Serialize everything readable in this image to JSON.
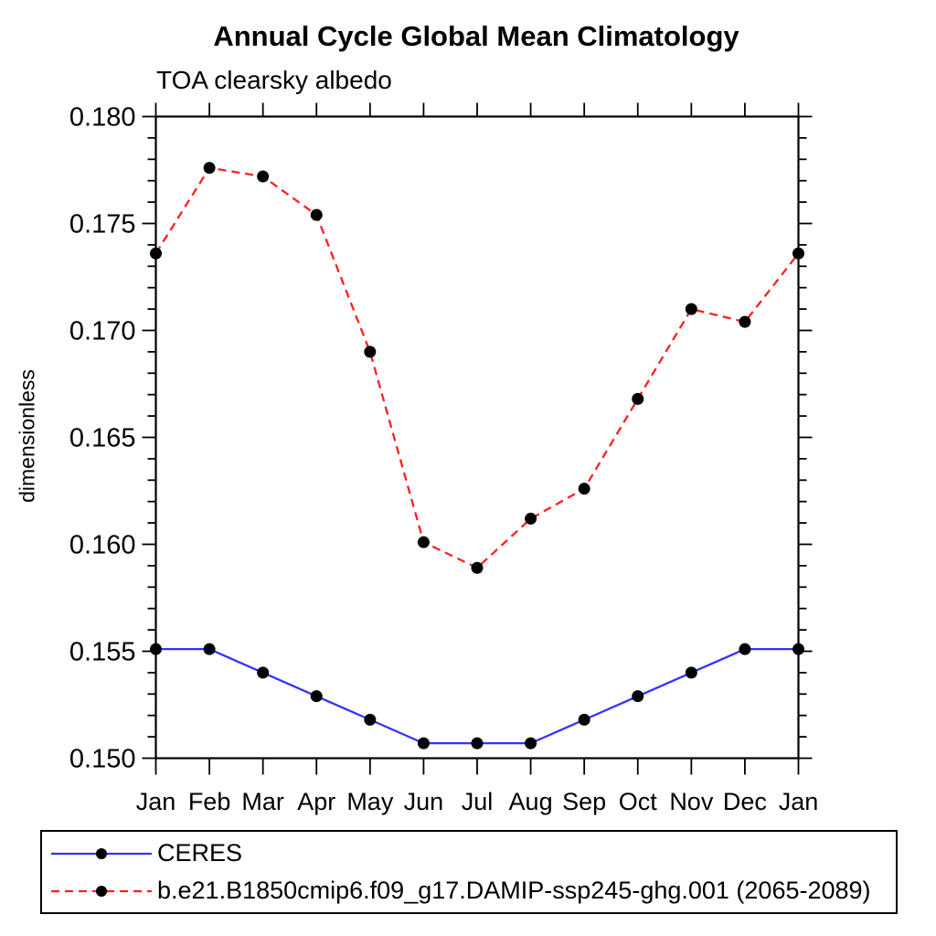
{
  "header": {
    "title": "Annual Cycle Global Mean Climatology",
    "subtitle": "TOA clearsky albedo"
  },
  "chart_data": {
    "type": "line",
    "title": "Annual Cycle Global Mean Climatology",
    "subtitle": "TOA clearsky albedo",
    "xlabel": "",
    "ylabel": "dimensionless",
    "categories": [
      "Jan",
      "Feb",
      "Mar",
      "Apr",
      "May",
      "Jun",
      "Jul",
      "Aug",
      "Sep",
      "Oct",
      "Nov",
      "Dec",
      "Jan"
    ],
    "ylim": [
      0.15,
      0.18
    ],
    "ytick_major_interval": 0.005,
    "ytick_minor_interval": 0.001,
    "ytick_labels": [
      "0.150",
      "0.155",
      "0.160",
      "0.165",
      "0.170",
      "0.175",
      "0.180"
    ],
    "grid": false,
    "legend_position": "bottom",
    "axis_color": "#000000",
    "series": [
      {
        "name": "CERES",
        "color": "#3333ff",
        "line_style": "solid",
        "marker": "filled-circle",
        "marker_color": "#000000",
        "values": [
          0.1551,
          0.1551,
          0.154,
          0.1529,
          0.1518,
          0.1507,
          0.1507,
          0.1507,
          0.1518,
          0.1529,
          0.154,
          0.1551,
          0.1551
        ]
      },
      {
        "name": "b.e21.B1850cmip6.f09_g17.DAMIP-ssp245-ghg.001 (2065-2089)",
        "color": "#ff1f1f",
        "line_style": "dashed",
        "marker": "filled-circle",
        "marker_color": "#000000",
        "values": [
          0.1736,
          0.1776,
          0.1772,
          0.1754,
          0.169,
          0.1601,
          0.1589,
          0.1612,
          0.1626,
          0.1668,
          0.171,
          0.1704,
          0.1736
        ]
      }
    ]
  }
}
